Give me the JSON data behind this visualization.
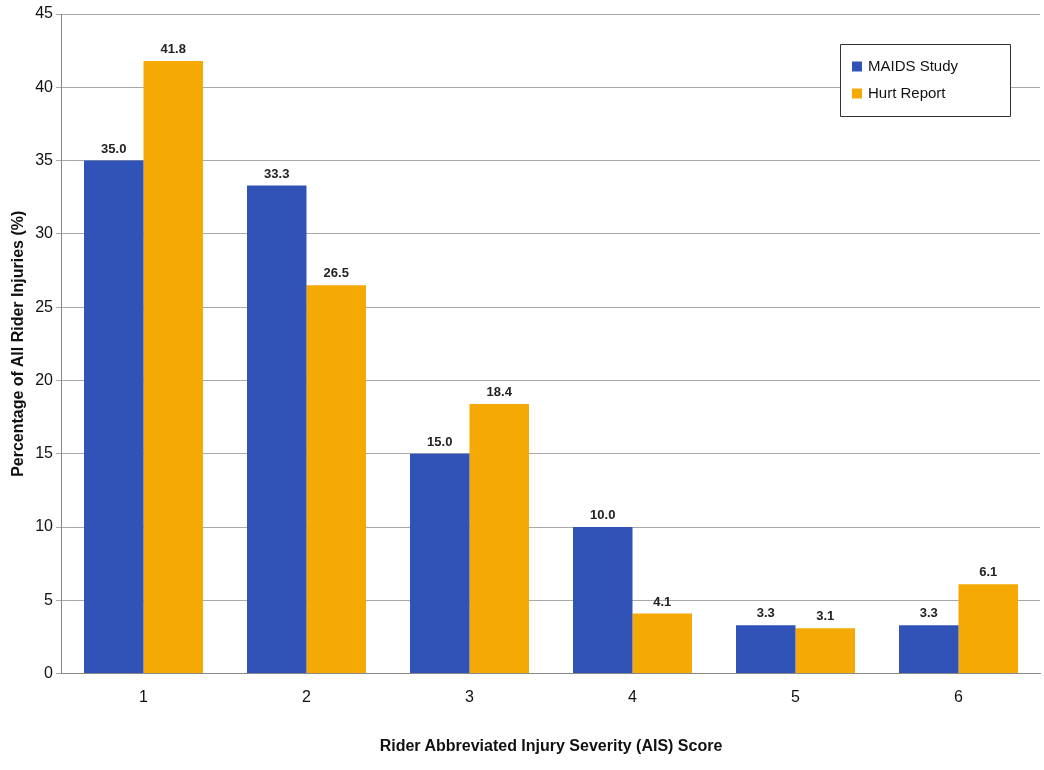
{
  "chart_data": {
    "type": "bar",
    "xlabel": "Rider Abbreviated Injury Severity (AIS) Score",
    "ylabel": "Percentage of All Rider Injuries (%)",
    "categories": [
      "1",
      "2",
      "3",
      "4",
      "5",
      "6"
    ],
    "series": [
      {
        "name": "MAIDS Study",
        "color": "#3153b8",
        "values": [
          35.0,
          33.3,
          15.0,
          10.0,
          3.3,
          3.3
        ],
        "value_labels": [
          "35.0",
          "33.3",
          "15.0",
          "10.0",
          "3.3",
          "3.3"
        ]
      },
      {
        "name": "Hurt Report",
        "color": "#f5a905",
        "values": [
          41.8,
          26.5,
          18.4,
          4.1,
          3.1,
          6.1
        ],
        "value_labels": [
          "41.8",
          "26.5",
          "18.4",
          "4.1",
          "3.1",
          "6.1"
        ]
      }
    ],
    "ylim": [
      0,
      45
    ],
    "yticks": [
      0,
      5,
      10,
      15,
      20,
      25,
      30,
      35,
      40,
      45
    ],
    "grid": "y",
    "legend": "top right"
  }
}
